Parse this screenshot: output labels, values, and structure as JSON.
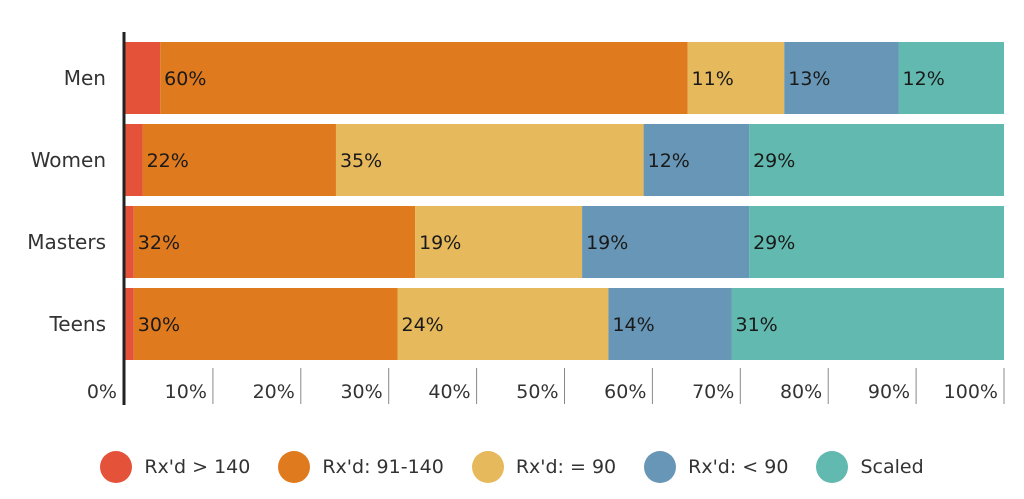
{
  "chart_data": {
    "type": "bar",
    "orientation": "horizontal",
    "stacked": true,
    "title": "",
    "xlabel": "",
    "ylabel": "",
    "xlim": [
      0,
      100
    ],
    "x_ticks": [
      "0%",
      "10%",
      "20%",
      "30%",
      "40%",
      "50%",
      "60%",
      "70%",
      "80%",
      "90%",
      "100%"
    ],
    "categories": [
      "Men",
      "Women",
      "Masters",
      "Teens"
    ],
    "series": [
      {
        "name": "Rx'd > 140",
        "color": "#e5523a",
        "values": [
          4,
          2,
          1,
          1
        ],
        "labels": [
          "",
          "",
          "",
          ""
        ]
      },
      {
        "name": "Rx'd: 91-140",
        "color": "#e07a1f",
        "values": [
          60,
          22,
          32,
          30
        ],
        "labels": [
          "60%",
          "22%",
          "32%",
          "30%"
        ]
      },
      {
        "name": "Rx'd: = 90",
        "color": "#e6b95c",
        "values": [
          11,
          35,
          19,
          24
        ],
        "labels": [
          "11%",
          "35%",
          "19%",
          "24%"
        ]
      },
      {
        "name": "Rx'd: < 90",
        "color": "#6896b6",
        "values": [
          13,
          12,
          19,
          14
        ],
        "labels": [
          "13%",
          "12%",
          "19%",
          "14%"
        ]
      },
      {
        "name": "Scaled",
        "color": "#62b9af",
        "values": [
          12,
          29,
          29,
          31
        ],
        "labels": [
          "12%",
          "29%",
          "29%",
          "31%"
        ]
      }
    ],
    "legend_position": "bottom",
    "grid": false
  }
}
